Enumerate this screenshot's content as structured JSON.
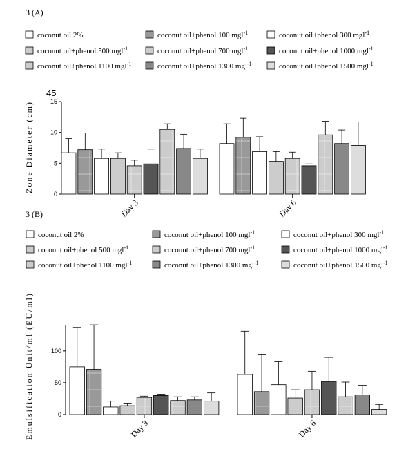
{
  "colors": {
    "white": "#ffffff",
    "gray_light": "#cccccc",
    "gray_mid": "#999999",
    "gray_dark": "#555555",
    "gray_medium": "#888888",
    "gray_pale": "#dddddd"
  },
  "legend_labels": [
    {
      "text": "coconut oil 2%",
      "sup": ""
    },
    {
      "text": "coconut oil+phenol 100 mgl",
      "sup": "-1"
    },
    {
      "text": "coconut oil+phenol 300 mgl",
      "sup": "-1"
    },
    {
      "text": "coconut oil+phenol 500 mgl",
      "sup": "-1"
    },
    {
      "text": "coconut oil+phenol 700 mgl",
      "sup": "-1"
    },
    {
      "text": "coconut oil+phenol 1000 mgl",
      "sup": "-1"
    },
    {
      "text": "coconut oil+phenol 1100 mgl",
      "sup": "-1"
    },
    {
      "text": "coconut oil+phenol 1300 mgl",
      "sup": "-1"
    },
    {
      "text": "coconut oil+phenol 1500 mgl",
      "sup": "-1"
    }
  ],
  "chart_data": [
    {
      "type": "bar",
      "panel_label": "3 (A)",
      "extra_label": "45",
      "ylabel": "Zone Diameter (cm)",
      "xlabel": "",
      "categories": [
        "Day 3",
        "Day 6"
      ],
      "ylim": [
        0,
        15
      ],
      "yticks": [
        0,
        5,
        10,
        15
      ],
      "grid": false,
      "legend_position": "top",
      "series": [
        {
          "name": "coconut oil 2%",
          "values": [
            6.7,
            8.2
          ],
          "errors": [
            2.3,
            3.2
          ]
        },
        {
          "name": "coconut oil+phenol 100 mgl-1",
          "values": [
            7.2,
            9.2
          ],
          "errors": [
            2.7,
            3.1
          ]
        },
        {
          "name": "coconut oil+phenol 300 mgl-1",
          "values": [
            5.8,
            6.9
          ],
          "errors": [
            1.5,
            2.4
          ]
        },
        {
          "name": "coconut oil+phenol 500 mgl-1",
          "values": [
            5.8,
            5.3
          ],
          "errors": [
            0.9,
            1.6
          ]
        },
        {
          "name": "coconut oil+phenol 700 mgl-1",
          "values": [
            4.6,
            5.8
          ],
          "errors": [
            0.9,
            1.0
          ]
        },
        {
          "name": "coconut oil+phenol 1000 mgl-1",
          "values": [
            4.9,
            4.6
          ],
          "errors": [
            2.4,
            0.3
          ]
        },
        {
          "name": "coconut oil+phenol 1100 mgl-1",
          "values": [
            10.5,
            9.6
          ],
          "errors": [
            0.9,
            2.2
          ]
        },
        {
          "name": "coconut oil+phenol 1300 mgl-1",
          "values": [
            7.4,
            8.2
          ],
          "errors": [
            2.3,
            2.2
          ]
        },
        {
          "name": "coconut oil+phenol 1500 mgl-1",
          "values": [
            5.8,
            7.9
          ],
          "errors": [
            1.5,
            3.8
          ]
        }
      ]
    },
    {
      "type": "bar",
      "panel_label": "3 (B)",
      "ylabel": "Emulsification Unit/ml (EU/ml)",
      "xlabel": "",
      "categories": [
        "Day 3",
        "Day 6"
      ],
      "ylim": [
        0,
        140
      ],
      "yticks": [
        0,
        50,
        100
      ],
      "grid": false,
      "legend_position": "top",
      "series": [
        {
          "name": "coconut oil 2%",
          "values": [
            75,
            63
          ],
          "errors": [
            62,
            68
          ]
        },
        {
          "name": "coconut oil+phenol 100 mgl-1",
          "values": [
            71,
            36
          ],
          "errors": [
            70,
            58
          ]
        },
        {
          "name": "coconut oil+phenol 300 mgl-1",
          "values": [
            12,
            47
          ],
          "errors": [
            9,
            36
          ]
        },
        {
          "name": "coconut oil+phenol 500 mgl-1",
          "values": [
            14,
            26
          ],
          "errors": [
            4,
            13
          ]
        },
        {
          "name": "coconut oil+phenol 700 mgl-1",
          "values": [
            27,
            39
          ],
          "errors": [
            2,
            29
          ]
        },
        {
          "name": "coconut oil+phenol 1000 mgl-1",
          "values": [
            30,
            52
          ],
          "errors": [
            2,
            38
          ]
        },
        {
          "name": "coconut oil+phenol 1100 mgl-1",
          "values": [
            22,
            28
          ],
          "errors": [
            6,
            23
          ]
        },
        {
          "name": "coconut oil+phenol 1300 mgl-1",
          "values": [
            23,
            31
          ],
          "errors": [
            5,
            15
          ]
        },
        {
          "name": "coconut oil+phenol 1500 mgl-1",
          "values": [
            21,
            8
          ],
          "errors": [
            13,
            8
          ]
        }
      ]
    }
  ]
}
